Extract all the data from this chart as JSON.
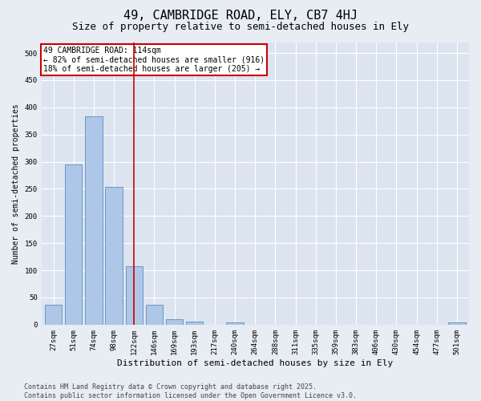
{
  "title": "49, CAMBRIDGE ROAD, ELY, CB7 4HJ",
  "subtitle": "Size of property relative to semi-detached houses in Ely",
  "xlabel": "Distribution of semi-detached houses by size in Ely",
  "ylabel": "Number of semi-detached properties",
  "categories": [
    "27sqm",
    "51sqm",
    "74sqm",
    "98sqm",
    "122sqm",
    "146sqm",
    "169sqm",
    "193sqm",
    "217sqm",
    "240sqm",
    "264sqm",
    "288sqm",
    "311sqm",
    "335sqm",
    "359sqm",
    "383sqm",
    "406sqm",
    "430sqm",
    "454sqm",
    "477sqm",
    "501sqm"
  ],
  "values": [
    37,
    295,
    383,
    254,
    108,
    37,
    10,
    6,
    0,
    4,
    0,
    0,
    0,
    0,
    0,
    0,
    0,
    0,
    0,
    0,
    4
  ],
  "bar_color": "#aec6e8",
  "bar_edge_color": "#5a8fc0",
  "vline_x": 4.0,
  "vline_color": "#cc0000",
  "annotation_box_text": "49 CAMBRIDGE ROAD: 114sqm\n← 82% of semi-detached houses are smaller (916)\n18% of semi-detached houses are larger (205) →",
  "annotation_box_color": "#cc0000",
  "fig_background_color": "#e8edf4",
  "plot_background_color": "#dce4f0",
  "grid_color": "#ffffff",
  "ylim": [
    0,
    520
  ],
  "yticks": [
    0,
    50,
    100,
    150,
    200,
    250,
    300,
    350,
    400,
    450,
    500
  ],
  "footer_line1": "Contains HM Land Registry data © Crown copyright and database right 2025.",
  "footer_line2": "Contains public sector information licensed under the Open Government Licence v3.0.",
  "title_fontsize": 11,
  "subtitle_fontsize": 9,
  "xlabel_fontsize": 8,
  "ylabel_fontsize": 7,
  "tick_fontsize": 6.5,
  "annotation_fontsize": 7,
  "footer_fontsize": 6
}
